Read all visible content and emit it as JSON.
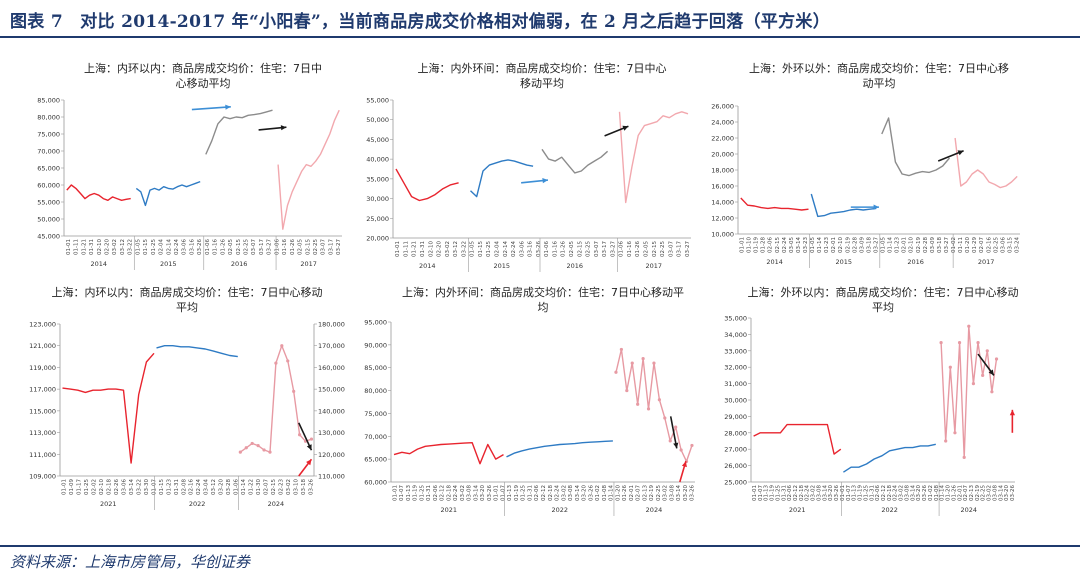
{
  "figure_title": "图表 7　对比 2014-2017 年“小阳春”，当前商品房成交价格相对偏弱，在 2 月之后趋于回落（平方米）",
  "source": "资料来源：上海市房管局，华创证券",
  "colors": {
    "red": "#e8242e",
    "blue": "#2e7bc4",
    "gray": "#8c8c8c",
    "pink": "#f2a8ae",
    "pink2": "#e79aa3",
    "arrow_black": "#1a1a1a",
    "arrow_red": "#e8242e",
    "arrow_blue": "#3d8fd6"
  },
  "chart_data": [
    {
      "type": "line",
      "title_lines": [
        "上海：内环以内：商品房成交均价：住宅：7日中",
        "心移动平均"
      ],
      "ylim": [
        45000,
        85000
      ],
      "yticks": [
        "45,000",
        "50,000",
        "55,000",
        "60,000",
        "65,000",
        "70,000",
        "75,000",
        "80,000",
        "85,000"
      ],
      "xticks": [
        "01-01",
        "01-11",
        "01-21",
        "01-31",
        "02-10",
        "02-20",
        "03-02",
        "03-12",
        "03-22",
        "01-05",
        "01-15",
        "01-25",
        "02-04",
        "02-14",
        "02-24",
        "03-06",
        "03-16",
        "03-26",
        "01-06",
        "01-16",
        "01-26",
        "02-05",
        "02-15",
        "02-25",
        "03-07",
        "03-17",
        "03-27",
        "01-06",
        "01-16",
        "01-26",
        "02-05",
        "02-15",
        "02-25",
        "03-07",
        "03-17",
        "03-27"
      ],
      "year_labels": [
        "2014",
        "2015",
        "2016",
        "2017"
      ],
      "series": [
        {
          "color": "red",
          "values": [
            58500,
            60000,
            59000,
            57500,
            56000,
            57000,
            57500,
            57000,
            56000,
            55500,
            56500,
            56000,
            55500,
            55800,
            56000
          ]
        },
        {
          "color": "blue",
          "values": [
            59000,
            58000,
            54000,
            58500,
            59000,
            58500,
            59500,
            59000,
            58800,
            59500,
            60000,
            59500,
            60000,
            60500,
            61000
          ]
        },
        {
          "color": "gray",
          "values": [
            69000,
            73000,
            78000,
            80000,
            79500,
            80000,
            79800,
            80500,
            80700,
            81000,
            81500,
            82000
          ]
        },
        {
          "color": "pink",
          "values": [
            66000,
            47000,
            54000,
            58000,
            61000,
            64000,
            66000,
            65500,
            67000,
            69000,
            72000,
            75000,
            79000,
            82000
          ]
        }
      ],
      "arrows": [
        {
          "color": "arrow_blue"
        },
        {
          "color": "arrow_black"
        }
      ]
    },
    {
      "type": "line",
      "title_lines": [
        "上海：内外环间：商品房成交均价：住宅：7日中心",
        "移动平均"
      ],
      "ylim": [
        20000,
        55000
      ],
      "yticks": [
        "20,000",
        "25,000",
        "30,000",
        "35,000",
        "40,000",
        "45,000",
        "50,000",
        "55,000"
      ],
      "xticks": [
        "01-01",
        "01-11",
        "01-21",
        "01-31",
        "02-10",
        "02-20",
        "03-02",
        "03-12",
        "03-22",
        "01-05",
        "01-15",
        "01-25",
        "02-04",
        "02-14",
        "02-24",
        "03-06",
        "03-16",
        "03-26",
        "01-06",
        "01-16",
        "01-26",
        "02-05",
        "02-15",
        "02-25",
        "03-07",
        "03-17",
        "03-27",
        "01-06",
        "01-16",
        "01-26",
        "02-05",
        "02-15",
        "02-25",
        "03-07",
        "03-17",
        "03-27"
      ],
      "year_labels": [
        "2014",
        "2015",
        "2016",
        "2017"
      ],
      "series": [
        {
          "color": "red",
          "values": [
            37500,
            34000,
            30500,
            29500,
            30000,
            31000,
            32500,
            33500,
            34000
          ]
        },
        {
          "color": "blue",
          "values": [
            32000,
            30500,
            37000,
            38500,
            39000,
            39500,
            39800,
            39500,
            39000,
            38500,
            38200
          ]
        },
        {
          "color": "gray",
          "values": [
            42500,
            40000,
            39500,
            40500,
            38500,
            36500,
            37000,
            38500,
            39500,
            40500,
            42000
          ]
        },
        {
          "color": "pink",
          "values": [
            52000,
            29000,
            38000,
            46000,
            48500,
            49000,
            49500,
            51000,
            50500,
            51500,
            52000,
            51500
          ]
        }
      ],
      "arrows": [
        {
          "color": "arrow_blue"
        },
        {
          "color": "arrow_black"
        }
      ]
    },
    {
      "type": "line",
      "title_lines": [
        "上海：外环以外：商品房成交均价：住宅：7日中心移",
        "动平均"
      ],
      "ylim": [
        10000,
        26000
      ],
      "yticks": [
        "10,000",
        "12,000",
        "14,000",
        "16,000",
        "18,000",
        "20,000",
        "22,000",
        "24,000",
        "26,000"
      ],
      "xticks": [
        "01-01",
        "01-10",
        "01-19",
        "01-28",
        "02-06",
        "02-15",
        "02-24",
        "03-05",
        "03-14",
        "03-23",
        "01-05",
        "01-14",
        "01-23",
        "02-01",
        "02-10",
        "02-19",
        "02-28",
        "03-09",
        "03-18",
        "03-27",
        "01-05",
        "01-14",
        "01-23",
        "02-01",
        "02-10",
        "02-19",
        "02-28",
        "03-09",
        "03-18",
        "03-27",
        "01-02",
        "01-11",
        "01-20",
        "01-29",
        "02-07",
        "02-16",
        "02-25",
        "03-06",
        "03-15",
        "03-24"
      ],
      "year_labels": [
        "2014",
        "2015",
        "2016",
        "2017"
      ],
      "series": [
        {
          "color": "red",
          "values": [
            14500,
            13600,
            13500,
            13300,
            13200,
            13300,
            13200,
            13200,
            13100,
            13000,
            13100
          ]
        },
        {
          "color": "blue",
          "values": [
            15000,
            12200,
            12300,
            12600,
            12700,
            12800,
            13000,
            13100,
            13000,
            13100,
            13200
          ]
        },
        {
          "color": "gray",
          "values": [
            22500,
            24500,
            19000,
            17500,
            17300,
            17600,
            17800,
            17700,
            18000,
            18500,
            19500
          ]
        },
        {
          "color": "pink",
          "values": [
            22000,
            16000,
            16500,
            17500,
            18000,
            17500,
            16500,
            16200,
            15800,
            16000,
            16500,
            17200
          ]
        }
      ],
      "arrows": [
        {
          "color": "arrow_blue"
        },
        {
          "color": "arrow_black"
        }
      ]
    },
    {
      "type": "line",
      "title_lines": [
        "上海：内环以内：商品房成交均价：住宅：7日中心移动",
        "平均"
      ],
      "ylim": [
        109000,
        123000
      ],
      "yticks": [
        "109,000",
        "111,000",
        "113,000",
        "115,000",
        "117,000",
        "119,000",
        "121,000",
        "123,000"
      ],
      "ylim_right": [
        110000,
        180000
      ],
      "yticks_right": [
        "110,000",
        "120,000",
        "130,000",
        "140,000",
        "150,000",
        "160,000",
        "170,000",
        "180,000"
      ],
      "xticks": [
        "01-01",
        "01-09",
        "01-17",
        "01-25",
        "02-02",
        "02-10",
        "02-18",
        "02-26",
        "03-06",
        "03-14",
        "03-22",
        "03-30",
        "01-07",
        "01-15",
        "01-23",
        "01-31",
        "02-08",
        "02-16",
        "02-24",
        "03-04",
        "03-12",
        "03-20",
        "03-28",
        "01-06",
        "01-14",
        "01-22",
        "01-30",
        "02-07",
        "02-15",
        "02-23",
        "03-02",
        "03-10",
        "03-18",
        "03-26"
      ],
      "year_labels": [
        "2021",
        "2022",
        "2024"
      ],
      "series": [
        {
          "color": "red",
          "axis": "left",
          "values": [
            117100,
            117000,
            116900,
            116700,
            116900,
            116900,
            117000,
            117000,
            116900,
            110200,
            116500,
            119500,
            120300
          ]
        },
        {
          "color": "blue",
          "axis": "left",
          "values": [
            120800,
            121000,
            121000,
            120900,
            120900,
            120800,
            120700,
            120500,
            120300,
            120100,
            120000
          ]
        },
        {
          "color": "pink2",
          "axis": "right",
          "markers": true,
          "values": [
            121000,
            123000,
            125000,
            124000,
            122000,
            121000,
            162000,
            170000,
            163000,
            149000,
            129000,
            126000,
            127000
          ]
        }
      ],
      "arrows": [
        {
          "color": "arrow_black"
        },
        {
          "color": "arrow_red"
        }
      ]
    },
    {
      "type": "line",
      "title_lines": [
        "上海：内外环间：商品房成交均价：住宅：7日中心移动平",
        "均"
      ],
      "ylim": [
        60000,
        95000
      ],
      "yticks": [
        "60,000",
        "65,000",
        "70,000",
        "75,000",
        "80,000",
        "85,000",
        "90,000",
        "95,000"
      ],
      "xticks": [
        "01-01",
        "01-07",
        "01-13",
        "01-19",
        "01-25",
        "01-31",
        "02-06",
        "02-12",
        "02-18",
        "02-24",
        "03-02",
        "03-08",
        "03-14",
        "03-20",
        "03-26",
        "01-01",
        "01-07",
        "01-13",
        "01-19",
        "01-25",
        "01-31",
        "02-06",
        "02-12",
        "02-18",
        "02-24",
        "03-02",
        "03-08",
        "03-14",
        "03-20",
        "03-26",
        "01-02",
        "01-08",
        "01-14",
        "01-20",
        "01-26",
        "02-01",
        "02-07",
        "02-13",
        "02-19",
        "02-25",
        "03-02",
        "03-08",
        "03-14",
        "03-20",
        "03-26"
      ],
      "year_labels": [
        "2021",
        "2022",
        "2024"
      ],
      "series": [
        {
          "color": "red",
          "axis": "left",
          "values": [
            66000,
            66500,
            66200,
            67200,
            67800,
            68000,
            68200,
            68300,
            68400,
            68500,
            68600,
            64000,
            68200,
            65000,
            66000
          ]
        },
        {
          "color": "blue",
          "axis": "left",
          "values": [
            65500,
            66300,
            66800,
            67200,
            67500,
            67800,
            68000,
            68200,
            68300,
            68400,
            68600,
            68700,
            68800,
            68900,
            69000
          ]
        },
        {
          "color": "pink2",
          "axis": "left",
          "markers": true,
          "values": [
            84000,
            89000,
            80000,
            86000,
            77000,
            87000,
            76000,
            86000,
            78000,
            74000,
            69000,
            72000,
            67000,
            64500,
            68000
          ]
        }
      ],
      "arrows": [
        {
          "color": "arrow_black"
        },
        {
          "color": "arrow_red"
        }
      ]
    },
    {
      "type": "line",
      "title_lines": [
        "上海：外环以内：商品房成交均价：住宅：7日中心移动",
        "平均"
      ],
      "ylim": [
        25000,
        35000
      ],
      "yticks": [
        "25,000",
        "26,000",
        "27,000",
        "28,000",
        "29,000",
        "30,000",
        "31,000",
        "32,000",
        "33,000",
        "34,000",
        "35,000"
      ],
      "xticks": [
        "01-01",
        "01-07",
        "01-13",
        "01-19",
        "01-25",
        "01-31",
        "02-06",
        "02-12",
        "02-18",
        "02-24",
        "03-02",
        "03-08",
        "03-14",
        "03-20",
        "03-26",
        "01-01",
        "01-07",
        "01-13",
        "01-19",
        "01-25",
        "01-31",
        "02-06",
        "02-12",
        "02-18",
        "02-24",
        "03-02",
        "03-08",
        "03-14",
        "03-20",
        "03-26",
        "01-02",
        "01-08",
        "01-14",
        "01-20",
        "01-26",
        "02-01",
        "02-07",
        "02-13",
        "02-19",
        "02-25",
        "03-02",
        "03-08",
        "03-14",
        "03-20",
        "03-26"
      ],
      "year_labels": [
        "2021",
        "2022",
        "2024"
      ],
      "series": [
        {
          "color": "red",
          "axis": "left",
          "values": [
            27800,
            28000,
            28000,
            28000,
            28000,
            28500,
            28500,
            28500,
            28500,
            28500,
            28500,
            28500,
            26700,
            27000
          ]
        },
        {
          "color": "blue",
          "axis": "left",
          "values": [
            25600,
            25900,
            25900,
            26100,
            26400,
            26600,
            26900,
            27000,
            27100,
            27100,
            27200,
            27200,
            27300
          ]
        },
        {
          "color": "pink2",
          "axis": "left",
          "markers": true,
          "values": [
            33500,
            27500,
            32000,
            28000,
            33500,
            26500,
            34500,
            31000,
            33500,
            31500,
            33000,
            30500,
            32500
          ]
        }
      ],
      "arrows": [
        {
          "color": "arrow_black"
        },
        {
          "color": "arrow_red"
        }
      ]
    }
  ]
}
